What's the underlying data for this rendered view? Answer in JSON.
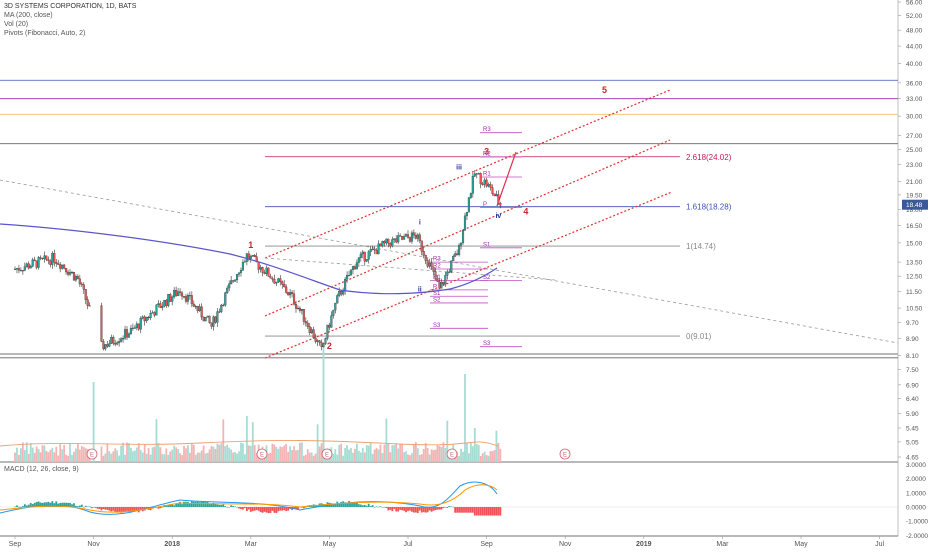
{
  "legend": {
    "title": "3D SYSTEMS CORPORATION, 1D, BATS",
    "ma": "MA (200, close)",
    "vol": "Vol (20)",
    "pivots": "Pivots (Fibonacci, Auto, 2)"
  },
  "macd_legend": "MACD (12, 26, close, 9)",
  "chart_data": {
    "type": "candlestick",
    "title": "3D SYSTEMS CORPORATION, 1D, BATS",
    "x_ticks": [
      "Sep",
      "Nov",
      "2018",
      "Mar",
      "May",
      "Jul",
      "Sep",
      "Nov",
      "2019",
      "Mar",
      "May",
      "Jul"
    ],
    "price_axis_ticks": [
      "56.00",
      "52.00",
      "48.00",
      "44.00",
      "40.00",
      "36.00",
      "33.00",
      "30.00",
      "27.00",
      "25.00",
      "23.00",
      "21.00",
      "19.50",
      "18.00",
      "16.50",
      "15.00",
      "13.50",
      "12.50",
      "11.50",
      "10.50",
      "9.70",
      "8.90",
      "8.10",
      "7.50",
      "6.90",
      "6.40",
      "5.90",
      "5.45",
      "5.05",
      "4.65"
    ],
    "macd_axis_ticks": [
      "3.0000",
      "2.0000",
      "1.0000",
      "0.0000",
      "-1.0000",
      "-2.0000"
    ],
    "last_price": "18.48",
    "horizontal_levels": [
      36.5,
      33.0,
      30.3,
      25.8,
      8.0
    ],
    "fib_levels": [
      {
        "label": "2.618(24.02)",
        "value": 24.02,
        "color": "#c2185b"
      },
      {
        "label": "1.618(18.28)",
        "value": 18.28,
        "color": "#3f51b5"
      },
      {
        "label": "1(14.74)",
        "value": 14.74,
        "color": "#888888"
      },
      {
        "label": "0(9.01)",
        "value": 9.01,
        "color": "#888888"
      }
    ],
    "wave_labels_major": [
      {
        "label": "1",
        "date": "2018-03",
        "price": 14.6
      },
      {
        "label": "2",
        "date": "2018-05",
        "price": 8.4
      },
      {
        "label": "3",
        "date": "2018-09",
        "price": 24.3
      },
      {
        "label": "4",
        "date": "2018-10",
        "price": 17.5
      },
      {
        "label": "5",
        "date": "2018-12",
        "price": 34.0
      }
    ],
    "wave_labels_minor": [
      {
        "label": "i",
        "date": "2018-07",
        "price": 16.6
      },
      {
        "label": "ii",
        "date": "2018-07",
        "price": 11.5
      },
      {
        "label": "iii",
        "date": "2018-08",
        "price": 22.4
      },
      {
        "label": "iv",
        "date": "2018-09",
        "price": 17.2
      }
    ],
    "pivot_labels": [
      "R3",
      "R2",
      "R1",
      "P",
      "S1",
      "S2",
      "S3",
      "R3",
      "R2",
      "R1",
      "P",
      "S1",
      "S2",
      "S3"
    ],
    "earnings_markers": [
      "E",
      "E",
      "E",
      "E",
      "E"
    ],
    "series": [
      {
        "name": "MA (200, close)",
        "color": "#5c55c9"
      },
      {
        "name": "Vol (20)",
        "color": "#f0a070"
      }
    ]
  }
}
